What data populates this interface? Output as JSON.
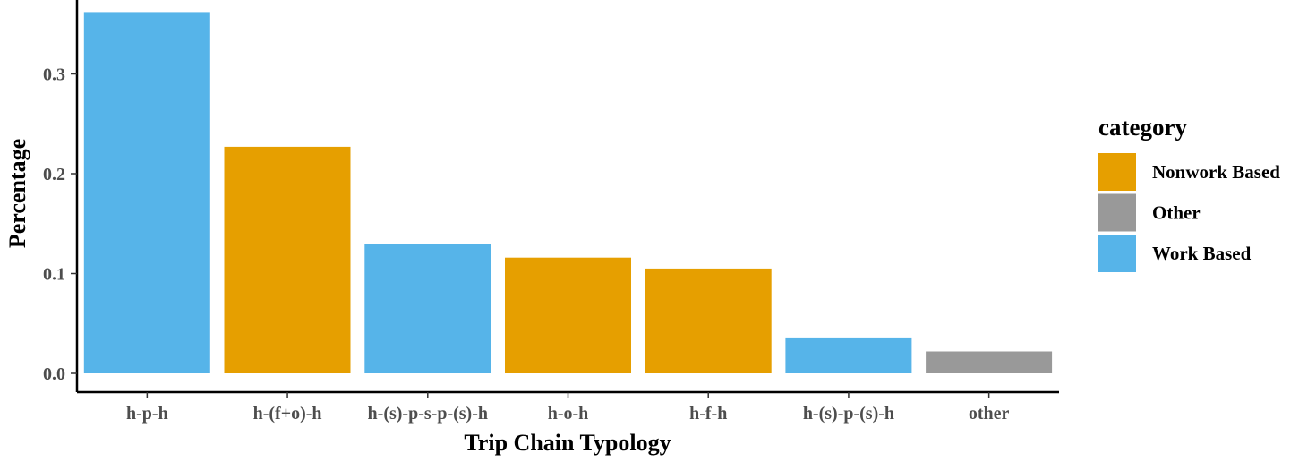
{
  "chart_data": {
    "type": "bar",
    "categories": [
      "h-p-h",
      "h-(f+o)-h",
      "h-(s)-p-s-p-(s)-h",
      "h-o-h",
      "h-f-h",
      "h-(s)-p-(s)-h",
      "other"
    ],
    "values": [
      0.362,
      0.227,
      0.13,
      0.116,
      0.105,
      0.036,
      0.022
    ],
    "bar_categories": [
      "Work Based",
      "Nonwork Based",
      "Work Based",
      "Nonwork Based",
      "Nonwork Based",
      "Work Based",
      "Other"
    ],
    "xlabel": "Trip Chain Typology",
    "ylabel": "Percentage",
    "ylim": [
      0,
      0.375
    ],
    "yticks": [
      0.0,
      0.1,
      0.2,
      0.3
    ],
    "ytick_labels": [
      "0.0",
      "0.1",
      "0.2",
      "0.3"
    ],
    "grid": false,
    "legend": {
      "title": "category",
      "placement": "right",
      "entries": [
        {
          "label": "Nonwork Based",
          "color": "#E69F00"
        },
        {
          "label": "Other",
          "color": "#999999"
        },
        {
          "label": "Work Based",
          "color": "#56B4E9"
        }
      ]
    }
  }
}
